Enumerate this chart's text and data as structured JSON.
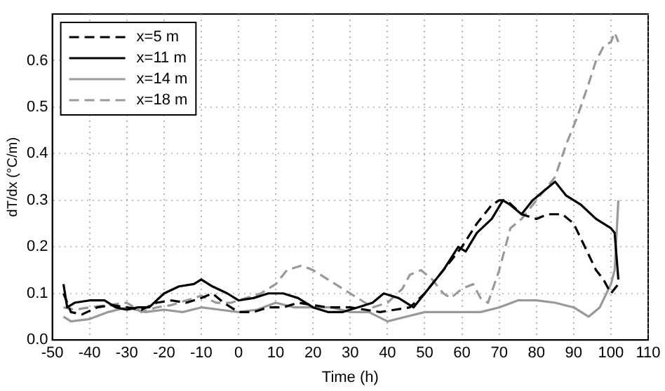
{
  "chart_data": {
    "type": "line",
    "xlabel": "Time (h)",
    "ylabel": "dT/dx (°C/m)",
    "xlim": [
      -50,
      110
    ],
    "xticks": [
      -50,
      -40,
      -30,
      -20,
      -10,
      0,
      10,
      20,
      30,
      40,
      50,
      60,
      70,
      80,
      90,
      100,
      110
    ],
    "ylim": [
      0,
      0.7
    ],
    "yticks": [
      {
        "value": 0,
        "label": "0.0"
      },
      0.1,
      0.2,
      0.3,
      0.4,
      0.5,
      0.6
    ],
    "grid": true,
    "legend": "top left",
    "marker": "none",
    "series": [
      {
        "name": "x=5 m",
        "color": "#000000",
        "line_style": "dashed",
        "x": [
          -47,
          -45,
          -42,
          -38,
          -34,
          -30,
          -26,
          -22,
          -18,
          -14,
          -10,
          -7,
          -4,
          0,
          4,
          8,
          12,
          16,
          20,
          24,
          30,
          34,
          38,
          42,
          46,
          50,
          55,
          60,
          64,
          68,
          70,
          72,
          76,
          80,
          83,
          87,
          90,
          93,
          96,
          98,
          100,
          102
        ],
        "values": [
          0.1,
          0.06,
          0.055,
          0.07,
          0.075,
          0.07,
          0.065,
          0.08,
          0.085,
          0.08,
          0.09,
          0.1,
          0.08,
          0.06,
          0.06,
          0.07,
          0.07,
          0.08,
          0.075,
          0.07,
          0.07,
          0.065,
          0.06,
          0.065,
          0.07,
          0.1,
          0.15,
          0.2,
          0.25,
          0.29,
          0.3,
          0.3,
          0.27,
          0.26,
          0.27,
          0.27,
          0.25,
          0.2,
          0.15,
          0.13,
          0.1,
          0.12
        ]
      },
      {
        "name": "x=11 m",
        "color": "#000000",
        "line_style": "solid",
        "x": [
          -47,
          -46,
          -44,
          -40,
          -36,
          -33,
          -30,
          -27,
          -24,
          -20,
          -16,
          -12,
          -10,
          -7,
          -3,
          0,
          4,
          8,
          12,
          16,
          20,
          24,
          28,
          32,
          36,
          39,
          43,
          47,
          50,
          55,
          59,
          61,
          64,
          68,
          71,
          73,
          76,
          79,
          82,
          85,
          88,
          92,
          96,
          100,
          101,
          102
        ],
        "values": [
          0.12,
          0.07,
          0.08,
          0.085,
          0.085,
          0.07,
          0.065,
          0.07,
          0.07,
          0.1,
          0.115,
          0.12,
          0.13,
          0.115,
          0.1,
          0.085,
          0.09,
          0.1,
          0.1,
          0.09,
          0.07,
          0.06,
          0.06,
          0.07,
          0.08,
          0.1,
          0.09,
          0.07,
          0.1,
          0.15,
          0.2,
          0.19,
          0.23,
          0.26,
          0.3,
          0.29,
          0.27,
          0.3,
          0.32,
          0.34,
          0.31,
          0.29,
          0.26,
          0.24,
          0.23,
          0.13
        ]
      },
      {
        "name": "x=14 m",
        "color": "#999999",
        "line_style": "solid",
        "x": [
          -47,
          -45,
          -40,
          -35,
          -30,
          -25,
          -20,
          -15,
          -10,
          -5,
          0,
          5,
          10,
          15,
          20,
          25,
          30,
          35,
          40,
          45,
          50,
          55,
          60,
          65,
          70,
          75,
          80,
          85,
          90,
          94,
          97,
          100,
          101,
          102
        ],
        "values": [
          0.05,
          0.04,
          0.045,
          0.06,
          0.07,
          0.06,
          0.065,
          0.06,
          0.07,
          0.065,
          0.06,
          0.065,
          0.08,
          0.07,
          0.07,
          0.07,
          0.06,
          0.06,
          0.04,
          0.05,
          0.06,
          0.06,
          0.06,
          0.06,
          0.07,
          0.085,
          0.085,
          0.08,
          0.07,
          0.05,
          0.07,
          0.12,
          0.15,
          0.3
        ]
      },
      {
        "name": "x=18 m",
        "color": "#999999",
        "line_style": "dashed",
        "x": [
          -47,
          -44,
          -40,
          -35,
          -30,
          -26,
          -22,
          -18,
          -14,
          -10,
          -6,
          -2,
          2,
          6,
          10,
          13,
          17,
          20,
          24,
          28,
          32,
          36,
          40,
          44,
          46,
          49,
          52,
          55,
          57,
          60,
          63,
          65,
          67,
          70,
          73,
          76,
          78,
          80,
          83,
          85,
          88,
          91,
          94,
          96,
          98,
          100,
          101,
          102
        ],
        "values": [
          0.07,
          0.065,
          0.07,
          0.075,
          0.08,
          0.06,
          0.07,
          0.075,
          0.085,
          0.095,
          0.08,
          0.08,
          0.09,
          0.1,
          0.12,
          0.15,
          0.16,
          0.15,
          0.13,
          0.11,
          0.09,
          0.07,
          0.08,
          0.11,
          0.14,
          0.15,
          0.13,
          0.1,
          0.09,
          0.11,
          0.12,
          0.09,
          0.08,
          0.15,
          0.24,
          0.26,
          0.28,
          0.3,
          0.33,
          0.35,
          0.42,
          0.48,
          0.55,
          0.6,
          0.63,
          0.64,
          0.66,
          0.64
        ]
      }
    ]
  }
}
